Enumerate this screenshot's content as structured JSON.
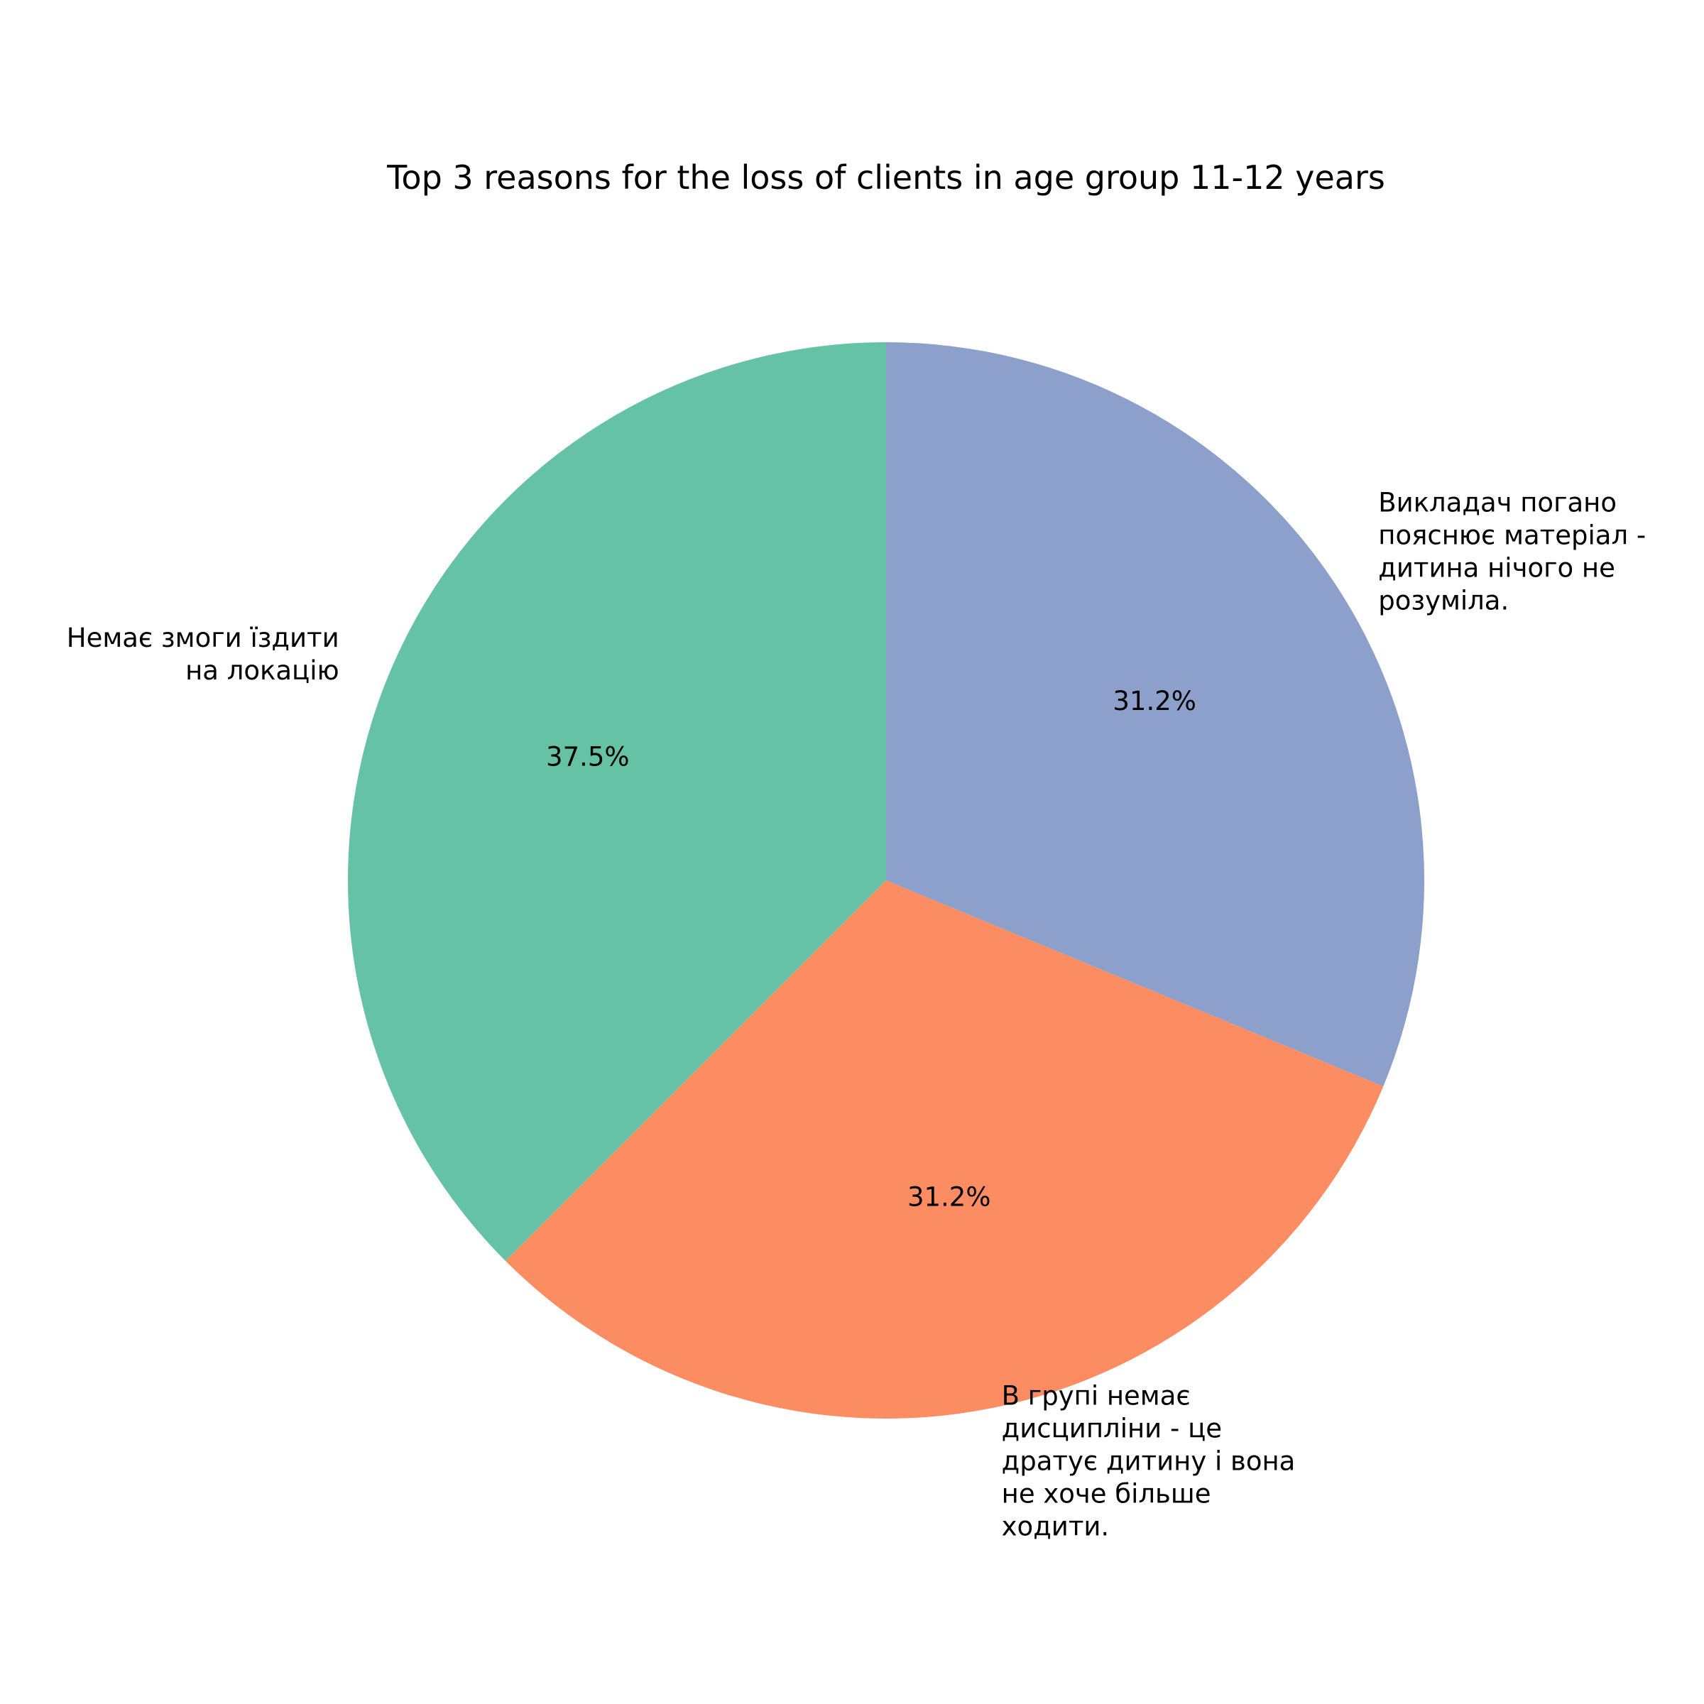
{
  "chart_data": {
    "type": "pie",
    "title": "Top 3 reasons for the loss of clients in age group 11-12 years",
    "start_angle_deg": 90,
    "direction": "counterclockwise",
    "slices": [
      {
        "label_lines": [
          "Немає змоги їздити",
          "на локацію"
        ],
        "value": 37.5,
        "pct_label": "37.5%",
        "color": "#66c2a5"
      },
      {
        "label_lines": [
          "В групі немає",
          "дисципліни - це",
          "дратує дитину і вона",
          "не хоче більше",
          "ходити."
        ],
        "value": 31.25,
        "pct_label": "31.2%",
        "color": "#fc8d62"
      },
      {
        "label_lines": [
          "Викладач погано",
          "пояснює матеріал -",
          "дитина нічого не",
          "розуміла."
        ],
        "value": 31.25,
        "pct_label": "31.2%",
        "color": "#8da0cb"
      }
    ]
  }
}
